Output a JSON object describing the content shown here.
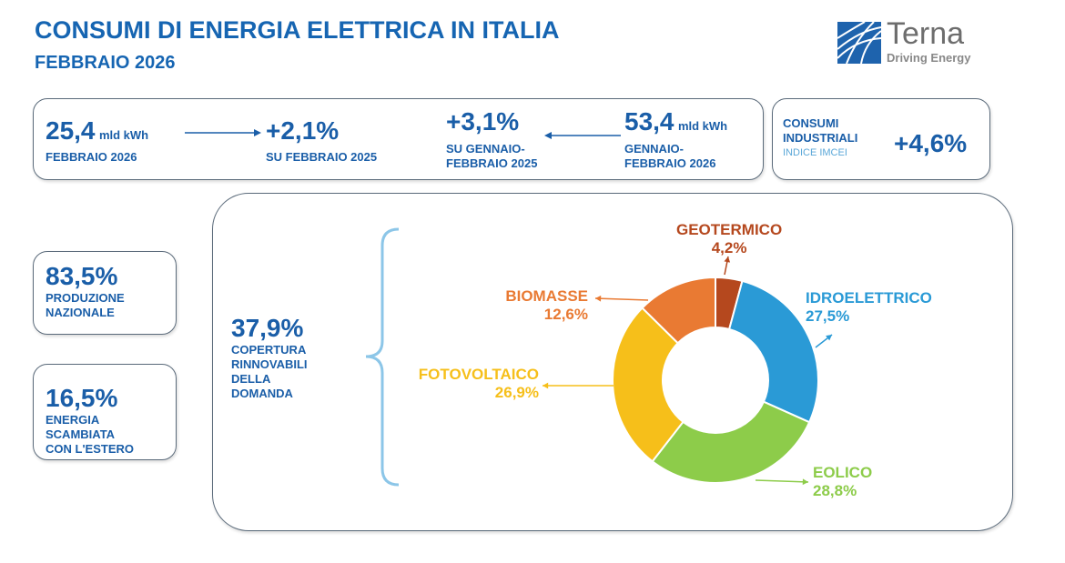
{
  "header": {
    "title": "CONSUMI DI ENERGIA ELETTRICA IN ITALIA",
    "subtitle": "FEBBRAIO 2026"
  },
  "logo": {
    "name": "Terna",
    "tagline": "Driving Energy"
  },
  "kpi": {
    "month_value": "25,4",
    "month_unit": "mld kWh",
    "month_label": "FEBBRAIO 2026",
    "month_change": "+2,1%",
    "month_change_label": "SU FEBBRAIO 2025",
    "ytd_change": "+3,1%",
    "ytd_change_label_1": "SU GENNAIO-",
    "ytd_change_label_2": "FEBBRAIO 2025",
    "ytd_value": "53,4",
    "ytd_unit": "mld kWh",
    "ytd_label_1": "GENNAIO-",
    "ytd_label_2": "FEBBRAIO 2026",
    "ind_label_1": "CONSUMI",
    "ind_label_2": "INDUSTRIALI",
    "ind_sub": "INDICE IMCEI",
    "ind_value": "+4,6%"
  },
  "side": {
    "prod_value": "83,5%",
    "prod_label_1": "PRODUZIONE",
    "prod_label_2": "NAZIONALE",
    "exch_value": "16,5%",
    "exch_label_1": "ENERGIA",
    "exch_label_2": "SCAMBIATA",
    "exch_label_3": "CON L'ESTERO"
  },
  "renew": {
    "value": "37,9%",
    "label_1": "COPERTURA",
    "label_2": "RINNOVABILI",
    "label_3": "DELLA",
    "label_4": "DOMANDA"
  },
  "chart_data": {
    "type": "pie",
    "donut": true,
    "categories": [
      "GEOTERMICO",
      "IDROELETTRICO",
      "EOLICO",
      "FOTOVOLTAICO",
      "BIOMASSE"
    ],
    "values": [
      4.2,
      27.5,
      28.8,
      26.9,
      12.6
    ],
    "value_labels": [
      "4,2%",
      "27,5%",
      "28,8%",
      "26,9%",
      "12,6%"
    ],
    "colors": [
      "#b5481e",
      "#2a9ad6",
      "#8dcc4a",
      "#f6bf1a",
      "#e97a33"
    ]
  }
}
